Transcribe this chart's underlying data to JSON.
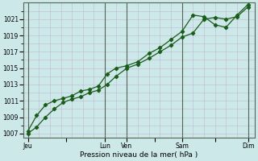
{
  "title": "Pression niveau de la mer( hPa )",
  "bg_color": "#cce8e8",
  "grid_color": "#c0b8d0",
  "line_color": "#1a5c1a",
  "ylim": [
    1006.5,
    1023.0
  ],
  "yticks": [
    1007,
    1009,
    1011,
    1013,
    1015,
    1017,
    1019,
    1021
  ],
  "xtick_labels": [
    "Jeu",
    "",
    "Lun",
    "Ven",
    "",
    "Sam",
    "",
    "Dim"
  ],
  "xtick_positions": [
    0,
    1.75,
    3.5,
    4.5,
    5.75,
    7.0,
    8.5,
    10.0
  ],
  "vline_positions": [
    3.5,
    4.5,
    7.0,
    10.0
  ],
  "line1_x": [
    0.0,
    0.4,
    0.8,
    1.2,
    1.6,
    2.0,
    2.4,
    2.8,
    3.2,
    3.6,
    4.0,
    4.5,
    5.0,
    5.5,
    6.0,
    6.5,
    7.0,
    7.5,
    8.0,
    8.5,
    9.0,
    9.5,
    10.0
  ],
  "line1_y": [
    1007.0,
    1007.8,
    1009.0,
    1010.0,
    1010.8,
    1011.2,
    1011.5,
    1012.0,
    1012.3,
    1013.0,
    1014.0,
    1015.0,
    1015.5,
    1016.2,
    1017.0,
    1017.8,
    1018.8,
    1019.3,
    1021.0,
    1021.2,
    1021.0,
    1021.3,
    1022.5
  ],
  "line2_x": [
    0.0,
    0.4,
    0.8,
    1.2,
    1.6,
    2.0,
    2.4,
    2.8,
    3.2,
    3.6,
    4.0,
    4.5,
    5.0,
    5.5,
    6.0,
    6.5,
    7.0,
    7.5,
    8.0,
    8.5,
    9.0,
    9.5,
    10.0
  ],
  "line2_y": [
    1007.3,
    1009.2,
    1010.5,
    1011.0,
    1011.3,
    1011.6,
    1012.2,
    1012.4,
    1012.8,
    1014.3,
    1015.0,
    1015.3,
    1015.8,
    1016.8,
    1017.5,
    1018.5,
    1019.5,
    1021.5,
    1021.3,
    1020.3,
    1020.0,
    1021.5,
    1022.8
  ],
  "xlim": [
    -0.2,
    10.3
  ]
}
